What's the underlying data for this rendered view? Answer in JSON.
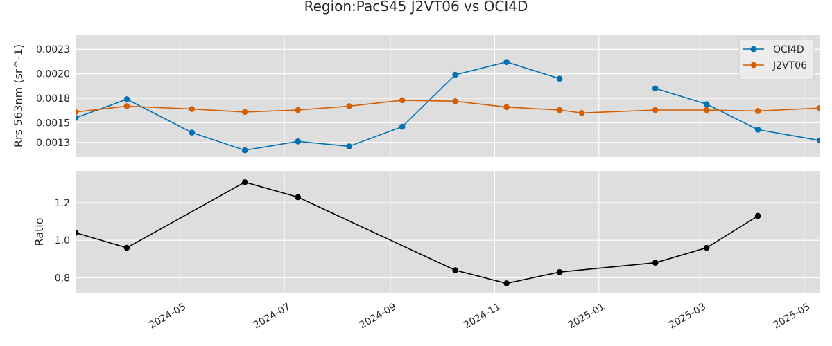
{
  "chart_data": {
    "type": "line",
    "title": "Region:PacS45 J2VT06 vs OCI4D",
    "xlim": [
      "2024-03-01",
      "2025-05-10"
    ],
    "x_ticks": [
      "2024-05",
      "2024-07",
      "2024-09",
      "2024-11",
      "2025-01",
      "2025-03",
      "2025-05"
    ],
    "grid": true,
    "panels": [
      {
        "ylabel": "Rrs 563nm (sr^-1)",
        "ylim": [
          0.00115,
          0.0024
        ],
        "y_ticks": [
          "0.0013",
          "0.0015",
          "0.0018",
          "0.0020",
          "0.0023"
        ],
        "y_tick_values": [
          0.0013,
          0.0015,
          0.00175,
          0.002,
          0.00225
        ],
        "legend_position": "top-right",
        "series": [
          {
            "name": "OCI4D",
            "color": "#0072b2",
            "points": [
              {
                "x": "2024-03-01",
                "y": 0.00155
              },
              {
                "x": "2024-03-31",
                "y": 0.00174
              },
              {
                "x": "2024-05-08",
                "y": 0.0014
              },
              {
                "x": "2024-06-08",
                "y": 0.00122
              },
              {
                "x": "2024-07-09",
                "y": 0.00131
              },
              {
                "x": "2024-08-08",
                "y": 0.00126
              },
              {
                "x": "2024-09-08",
                "y": 0.00146
              },
              {
                "x": "2024-10-09",
                "y": 0.00199
              },
              {
                "x": "2024-11-08",
                "y": 0.00212
              },
              {
                "x": "2024-12-09",
                "y": 0.00195
              },
              {
                "x": "2025-01-23",
                "y": null
              },
              {
                "x": "2025-02-03",
                "y": 0.00185
              },
              {
                "x": "2025-03-05",
                "y": 0.00169
              },
              {
                "x": "2025-04-04",
                "y": 0.00143
              },
              {
                "x": "2025-05-10",
                "y": 0.00132
              }
            ]
          },
          {
            "name": "J2VT06",
            "color": "#d55e00",
            "points": [
              {
                "x": "2024-03-01",
                "y": 0.00161
              },
              {
                "x": "2024-03-31",
                "y": 0.00167
              },
              {
                "x": "2024-05-08",
                "y": 0.00164
              },
              {
                "x": "2024-06-08",
                "y": 0.00161
              },
              {
                "x": "2024-07-09",
                "y": 0.00163
              },
              {
                "x": "2024-08-08",
                "y": 0.00167
              },
              {
                "x": "2024-09-08",
                "y": 0.00173
              },
              {
                "x": "2024-10-09",
                "y": 0.00172
              },
              {
                "x": "2024-11-08",
                "y": 0.00166
              },
              {
                "x": "2024-12-09",
                "y": 0.00163
              },
              {
                "x": "2024-12-22",
                "y": 0.0016
              },
              {
                "x": "2025-02-03",
                "y": 0.00163
              },
              {
                "x": "2025-03-05",
                "y": 0.00163
              },
              {
                "x": "2025-04-04",
                "y": 0.00162
              },
              {
                "x": "2025-05-10",
                "y": 0.00165
              }
            ]
          }
        ]
      },
      {
        "ylabel": "Ratio",
        "ylim": [
          0.72,
          1.37
        ],
        "y_ticks": [
          "0.8",
          "1.0",
          "1.2"
        ],
        "y_tick_values": [
          0.8,
          1.0,
          1.2
        ],
        "series": [
          {
            "name": "",
            "color": "#000000",
            "points": [
              {
                "x": "2024-03-01",
                "y": 1.04
              },
              {
                "x": "2024-03-31",
                "y": 0.96
              },
              {
                "x": "2024-06-08",
                "y": 1.31
              },
              {
                "x": "2024-07-09",
                "y": 1.23
              },
              {
                "x": "2024-10-09",
                "y": 0.84
              },
              {
                "x": "2024-11-08",
                "y": 0.77
              },
              {
                "x": "2024-12-09",
                "y": 0.83
              },
              {
                "x": "2025-02-03",
                "y": 0.88
              },
              {
                "x": "2025-03-05",
                "y": 0.96
              },
              {
                "x": "2025-04-04",
                "y": 1.13
              }
            ]
          }
        ]
      }
    ]
  }
}
